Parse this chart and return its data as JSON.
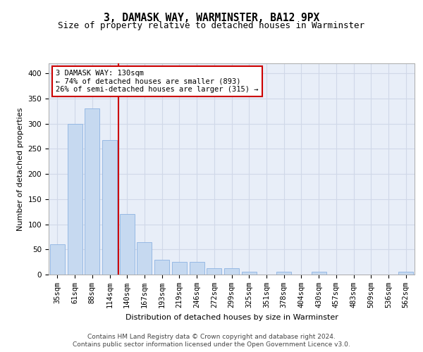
{
  "title": "3, DAMASK WAY, WARMINSTER, BA12 9PX",
  "subtitle": "Size of property relative to detached houses in Warminster",
  "xlabel": "Distribution of detached houses by size in Warminster",
  "ylabel": "Number of detached properties",
  "categories": [
    "35sqm",
    "61sqm",
    "88sqm",
    "114sqm",
    "140sqm",
    "167sqm",
    "193sqm",
    "219sqm",
    "246sqm",
    "272sqm",
    "299sqm",
    "325sqm",
    "351sqm",
    "378sqm",
    "404sqm",
    "430sqm",
    "457sqm",
    "483sqm",
    "509sqm",
    "536sqm",
    "562sqm"
  ],
  "values": [
    60,
    300,
    330,
    268,
    120,
    65,
    30,
    25,
    25,
    12,
    12,
    5,
    0,
    5,
    0,
    5,
    0,
    0,
    0,
    0,
    5
  ],
  "bar_color": "#c6d9f0",
  "bar_edge_color": "#8db3e2",
  "annotation_text": "3 DAMASK WAY: 130sqm\n← 74% of detached houses are smaller (893)\n26% of semi-detached houses are larger (315) →",
  "annotation_box_color": "#ffffff",
  "annotation_box_edge": "#cc0000",
  "annotation_fontsize": 7.5,
  "grid_color": "#d0d8e8",
  "background_color": "#e8eef8",
  "ylim": [
    0,
    420
  ],
  "yticks": [
    0,
    50,
    100,
    150,
    200,
    250,
    300,
    350,
    400
  ],
  "footer_line1": "Contains HM Land Registry data © Crown copyright and database right 2024.",
  "footer_line2": "Contains public sector information licensed under the Open Government Licence v3.0.",
  "title_fontsize": 10.5,
  "subtitle_fontsize": 9,
  "xlabel_fontsize": 8,
  "ylabel_fontsize": 8,
  "tick_fontsize": 7.5
}
